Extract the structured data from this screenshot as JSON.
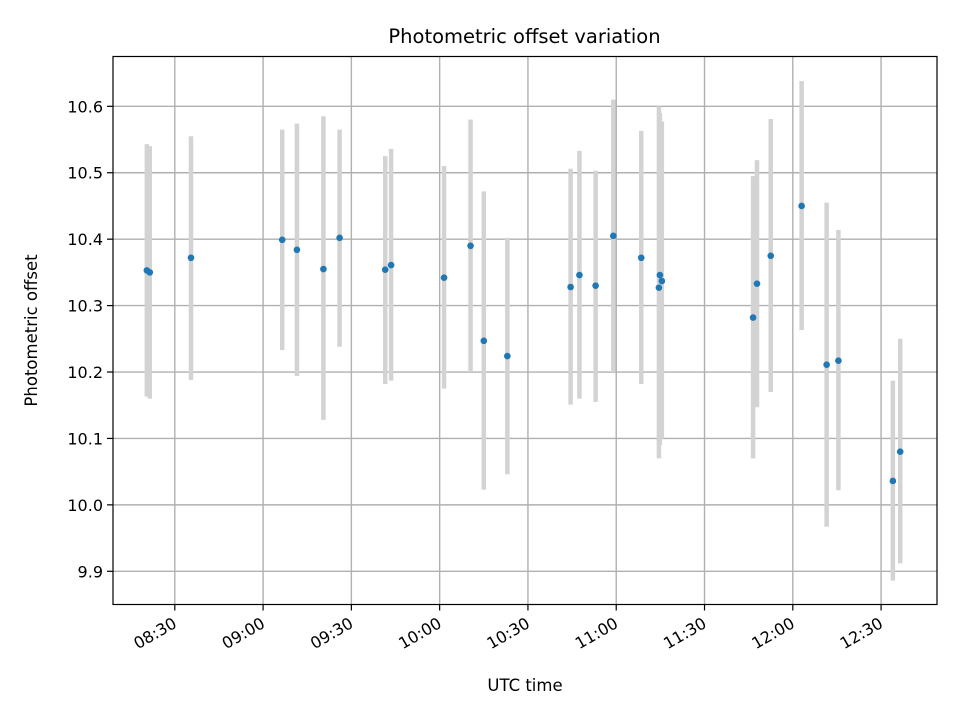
{
  "chart_data": {
    "type": "scatter",
    "title": "Photometric offset variation",
    "xlabel": "UTC time",
    "ylabel": "Photometric offset",
    "xlim": [
      "08:09",
      "12:49"
    ],
    "ylim": [
      9.85,
      10.675
    ],
    "grid": true,
    "x_ticks": [
      "08:30",
      "09:00",
      "09:30",
      "10:00",
      "10:30",
      "11:00",
      "11:30",
      "12:00",
      "12:30"
    ],
    "y_ticks": [
      "9.9",
      "10.0",
      "10.1",
      "10.2",
      "10.3",
      "10.4",
      "10.5",
      "10.6"
    ],
    "colors": {
      "point": "#1f77b4",
      "errorbar": "#d3d3d3",
      "grid": "#b0b0b0"
    },
    "series": [
      {
        "points": [
          {
            "time": "08:20:30",
            "y": 10.353,
            "low": 10.163,
            "high": 10.543
          },
          {
            "time": "08:21:30",
            "y": 10.35,
            "low": 10.16,
            "high": 10.54
          },
          {
            "time": "08:35:30",
            "y": 10.372,
            "low": 10.188,
            "high": 10.555
          },
          {
            "time": "09:06:30",
            "y": 10.399,
            "low": 10.233,
            "high": 10.565
          },
          {
            "time": "09:11:30",
            "y": 10.384,
            "low": 10.194,
            "high": 10.574
          },
          {
            "time": "09:20:30",
            "y": 10.355,
            "low": 10.128,
            "high": 10.585
          },
          {
            "time": "09:26:00",
            "y": 10.402,
            "low": 10.238,
            "high": 10.565
          },
          {
            "time": "09:41:30",
            "y": 10.354,
            "low": 10.182,
            "high": 10.525
          },
          {
            "time": "09:43:30",
            "y": 10.361,
            "low": 10.187,
            "high": 10.536
          },
          {
            "time": "10:01:30",
            "y": 10.342,
            "low": 10.175,
            "high": 10.51
          },
          {
            "time": "10:10:30",
            "y": 10.39,
            "low": 10.2,
            "high": 10.58
          },
          {
            "time": "10:15:00",
            "y": 10.247,
            "low": 10.023,
            "high": 10.472
          },
          {
            "time": "10:23:00",
            "y": 10.224,
            "low": 10.046,
            "high": 10.402
          },
          {
            "time": "10:44:30",
            "y": 10.328,
            "low": 10.151,
            "high": 10.506
          },
          {
            "time": "10:47:30",
            "y": 10.346,
            "low": 10.16,
            "high": 10.533
          },
          {
            "time": "10:53:00",
            "y": 10.33,
            "low": 10.155,
            "high": 10.503
          },
          {
            "time": "10:59:00",
            "y": 10.405,
            "low": 10.2,
            "high": 10.61
          },
          {
            "time": "11:08:30",
            "y": 10.372,
            "low": 10.182,
            "high": 10.563
          },
          {
            "time": "11:14:30",
            "y": 10.327,
            "low": 10.07,
            "high": 10.6
          },
          {
            "time": "11:14:50",
            "y": 10.346,
            "low": 10.09,
            "high": 10.59
          },
          {
            "time": "11:15:30",
            "y": 10.337,
            "low": 10.1,
            "high": 10.577
          },
          {
            "time": "11:46:30",
            "y": 10.282,
            "low": 10.07,
            "high": 10.495
          },
          {
            "time": "11:47:50",
            "y": 10.333,
            "low": 10.147,
            "high": 10.519
          },
          {
            "time": "11:52:30",
            "y": 10.375,
            "low": 10.17,
            "high": 10.581
          },
          {
            "time": "12:03:00",
            "y": 10.45,
            "low": 10.263,
            "high": 10.638
          },
          {
            "time": "12:11:30",
            "y": 10.211,
            "low": 9.967,
            "high": 10.455
          },
          {
            "time": "12:15:30",
            "y": 10.217,
            "low": 10.022,
            "high": 10.414
          },
          {
            "time": "12:34:00",
            "y": 10.036,
            "low": 9.886,
            "high": 10.187
          },
          {
            "time": "12:36:30",
            "y": 10.08,
            "low": 9.912,
            "high": 10.25
          }
        ]
      }
    ]
  }
}
